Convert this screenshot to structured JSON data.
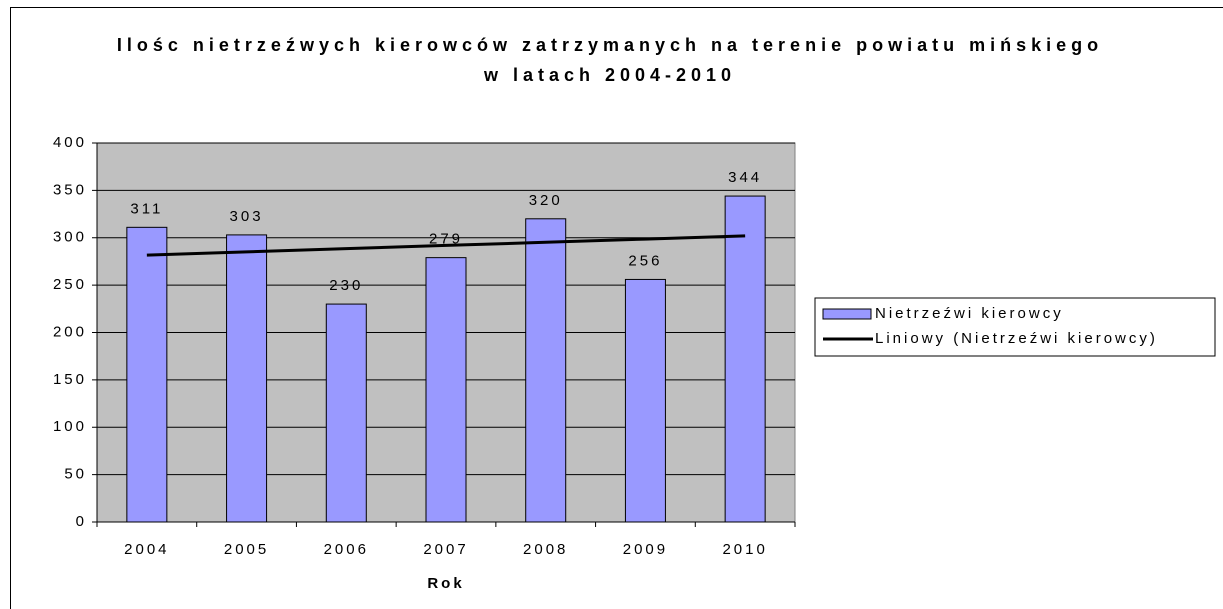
{
  "chart_data": {
    "type": "bar",
    "title": "Ilośc nietrzeźwych kierowców zatrzymanych na terenie powiatu mińskiego w latach 2004-2010",
    "x_label": "Rok",
    "categories": [
      "2004",
      "2005",
      "2006",
      "2007",
      "2008",
      "2009",
      "2010"
    ],
    "series": [
      {
        "name": "Nietrzeźwi kierowcy",
        "type": "bar",
        "color": "#9999ff",
        "values": [
          311,
          303,
          230,
          279,
          320,
          256,
          344
        ]
      },
      {
        "name": "Liniowy (Nietrzeźwi kierowcy)",
        "type": "line",
        "color": "#000000",
        "values": [
          281.7,
          285.1,
          288.5,
          291.9,
          295.2,
          298.6,
          302.0
        ]
      }
    ],
    "ylim": [
      0,
      400
    ],
    "yticks": [
      0,
      50,
      100,
      150,
      200,
      250,
      300,
      350,
      400
    ],
    "grid": true,
    "legend": "right"
  }
}
